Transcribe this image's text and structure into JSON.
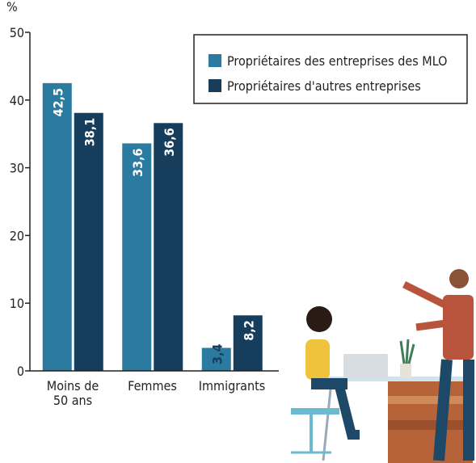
{
  "chart_data": {
    "type": "bar",
    "y_label": "%",
    "categories": [
      "Moins de\n50 ans",
      "Femmes",
      "Immigrants"
    ],
    "series": [
      {
        "name": "Propriétaires des entreprises des MLO",
        "color": "#2b7ba0",
        "values": [
          42.5,
          33.6,
          3.4
        ],
        "value_labels": [
          "42,5",
          "33,6",
          "3,4"
        ]
      },
      {
        "name": "Propriétaires d'autres entreprises",
        "color": "#163d5c",
        "values": [
          38.1,
          36.6,
          8.2
        ],
        "value_labels": [
          "38,1",
          "36,6",
          "8,2"
        ]
      }
    ],
    "ylim": [
      0,
      50
    ],
    "yticks": [
      0,
      10,
      20,
      30,
      40,
      50
    ],
    "legend": "top-right"
  }
}
